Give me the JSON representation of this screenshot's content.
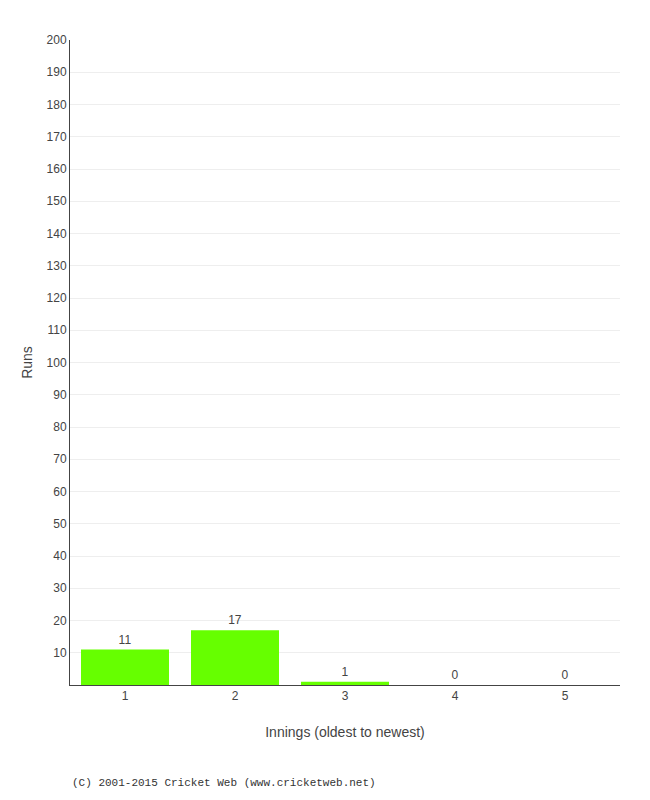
{
  "chart_data": {
    "type": "bar",
    "categories": [
      "1",
      "2",
      "3",
      "4",
      "5"
    ],
    "values": [
      11,
      17,
      1,
      0,
      0
    ],
    "color": "#66ff00",
    "xlabel": "Innings (oldest to newest)",
    "ylabel": "Runs",
    "ylim": [
      0,
      200
    ],
    "yticks": [
      10,
      20,
      30,
      40,
      50,
      60,
      70,
      80,
      90,
      100,
      110,
      120,
      130,
      140,
      150,
      160,
      170,
      180,
      190,
      200
    ],
    "grid": true,
    "data_labels": true,
    "annotations": [
      "(C) 2001-2015 Cricket Web (www.cricketweb.net)"
    ]
  }
}
